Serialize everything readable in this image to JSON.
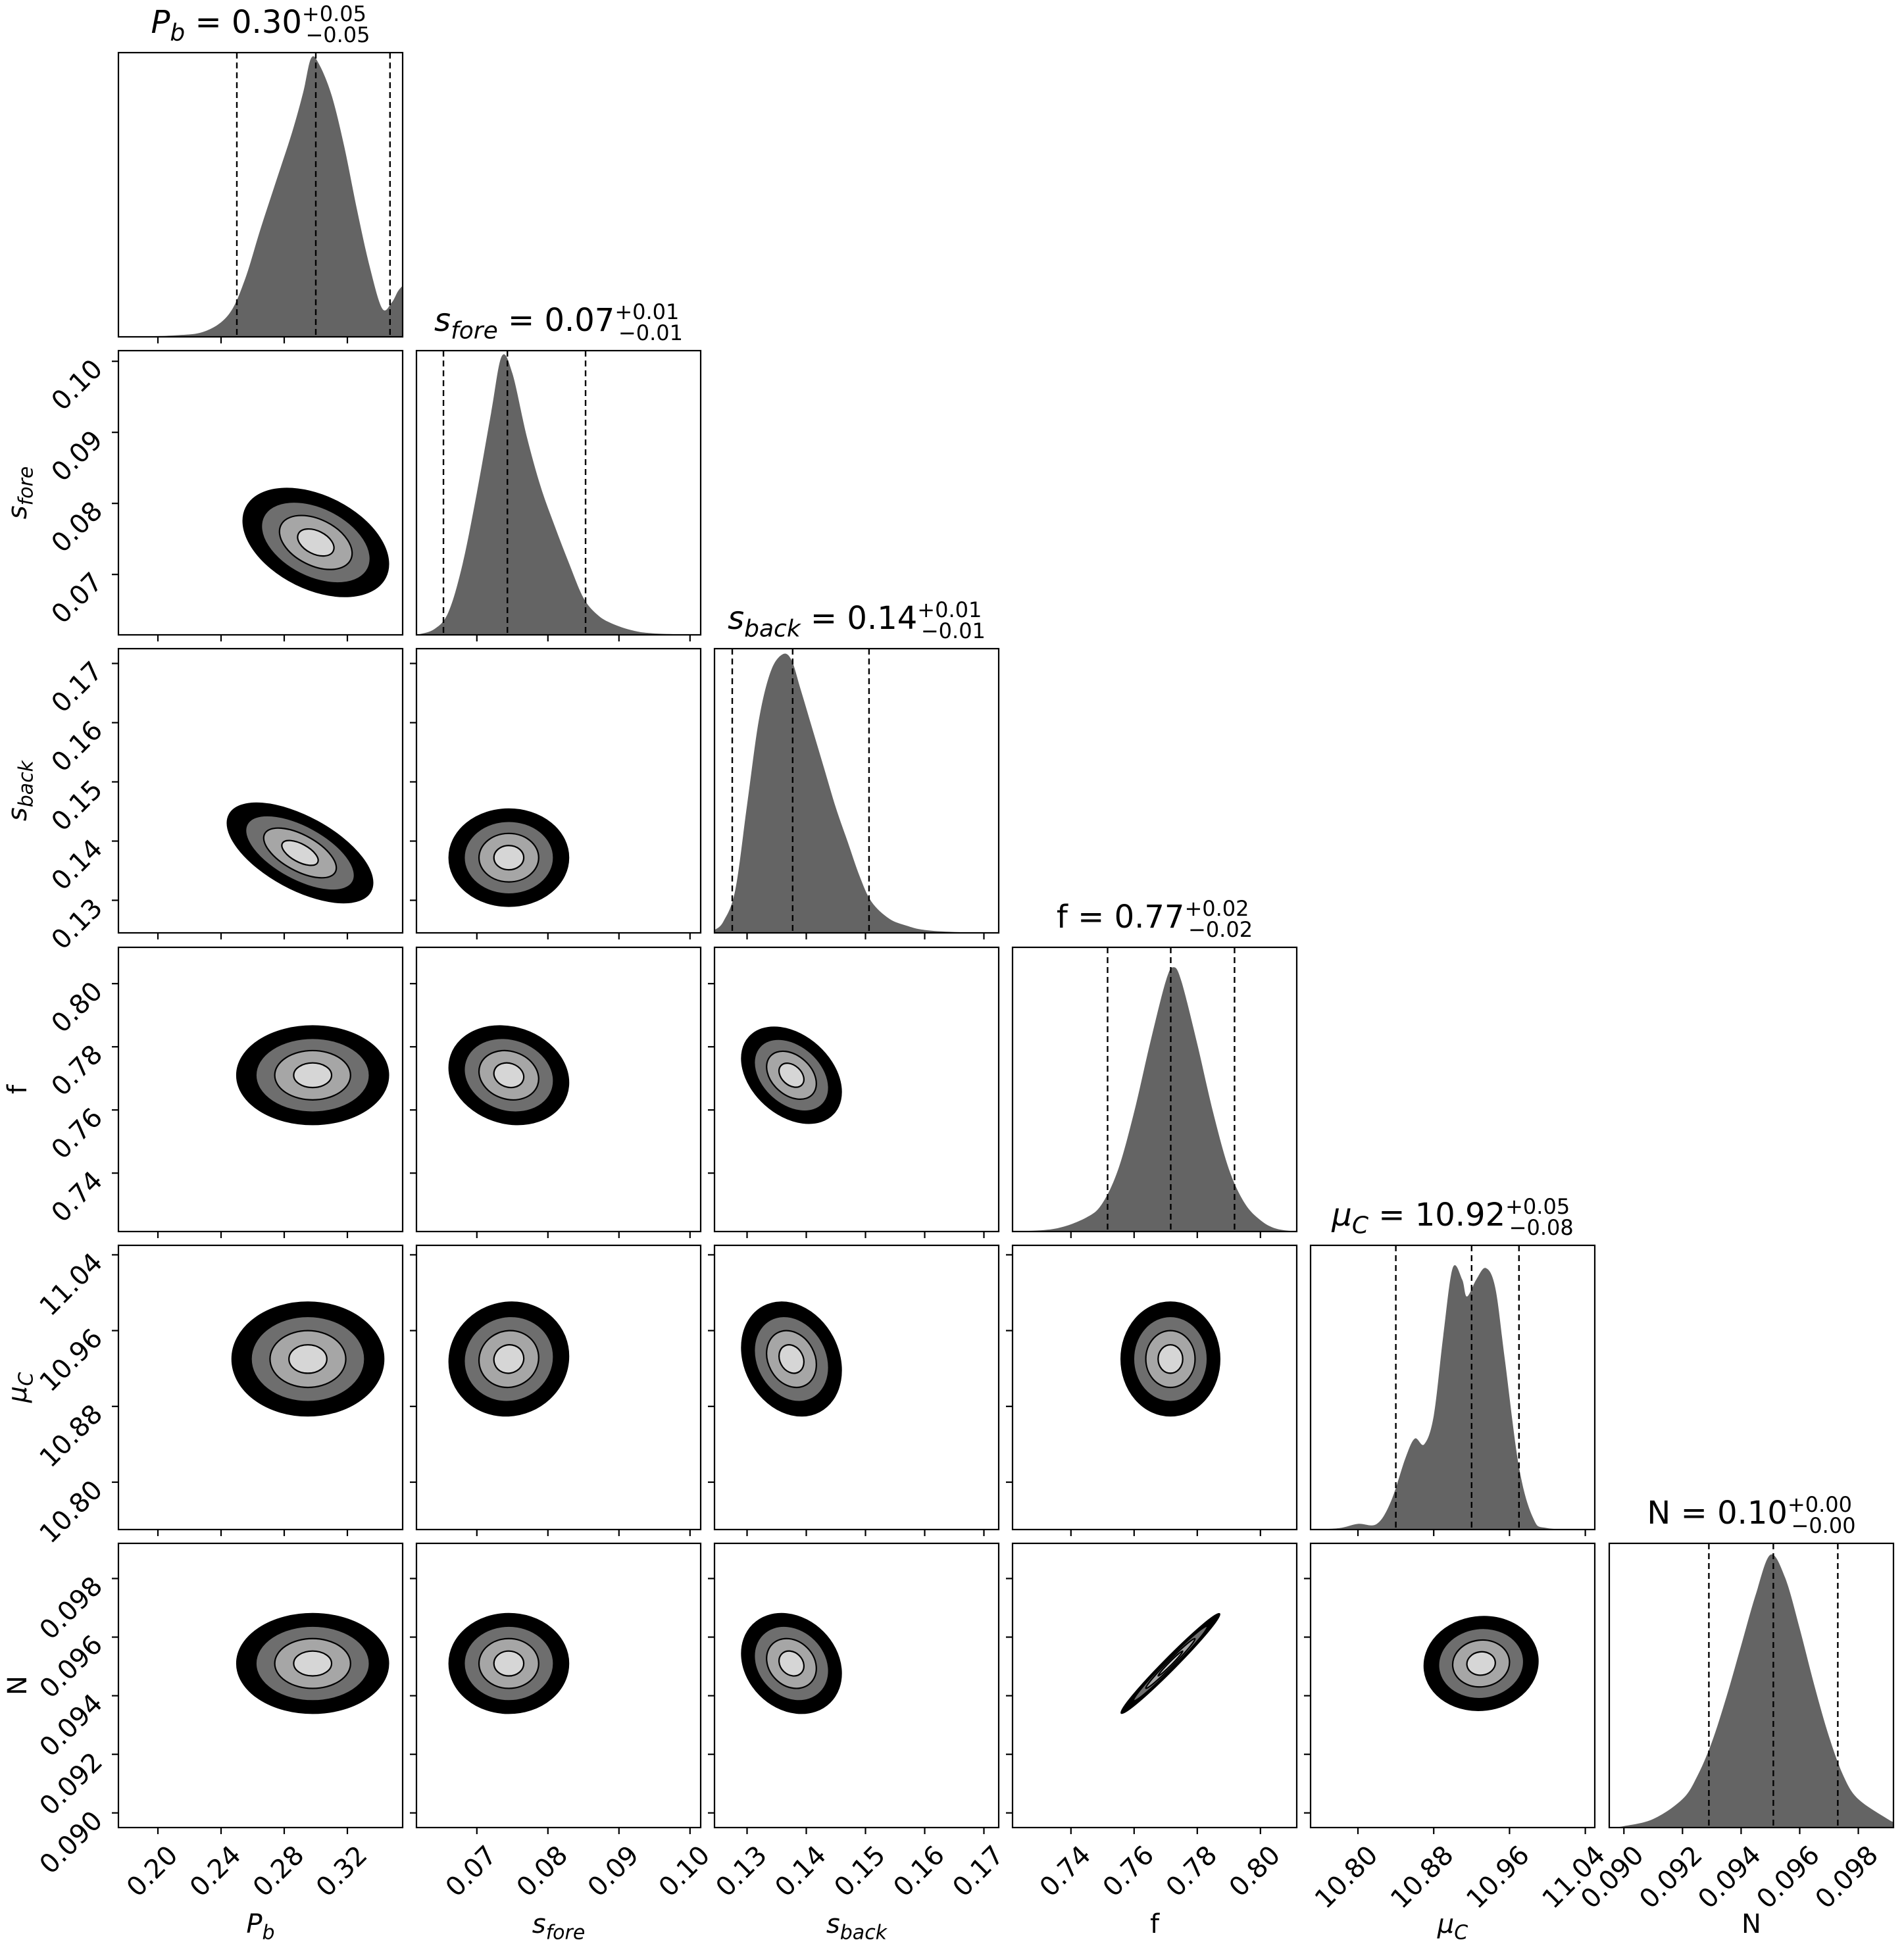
{
  "chart_data": {
    "type": "corner",
    "title": "",
    "parameters": [
      {
        "key": "pb",
        "title": {
          "base": "P",
          "sub": "b",
          "rest": " = 0.30",
          "sup": "+0.05",
          "inf": "−0.05"
        },
        "label": {
          "base": "P",
          "sub": "b"
        },
        "range": [
          0.175,
          0.355
        ],
        "ticks": [
          "0.20",
          "0.24",
          "0.28",
          "0.32"
        ],
        "median": 0.3,
        "q16": 0.25,
        "q84": 0.347
      },
      {
        "key": "sfore",
        "title": {
          "base": "s",
          "sub": "fore",
          "rest": " = 0.07",
          "sup": "+0.01",
          "inf": "−0.01"
        },
        "label": {
          "base": "s",
          "sub": "fore"
        },
        "range": [
          0.0615,
          0.1015
        ],
        "ticks": [
          "0.07",
          "0.08",
          "0.09",
          "0.10"
        ],
        "median": 0.0743,
        "q16": 0.0653,
        "q84": 0.0853
      },
      {
        "key": "sback",
        "title": {
          "base": "s",
          "sub": "back",
          "rest": " = 0.14",
          "sup": "+0.01",
          "inf": "−0.01"
        },
        "label": {
          "base": "s",
          "sub": "back"
        },
        "range": [
          0.1245,
          0.1725
        ],
        "ticks": [
          "0.13",
          "0.14",
          "0.15",
          "0.16",
          "0.17"
        ],
        "median": 0.1377,
        "q16": 0.1275,
        "q84": 0.1506
      },
      {
        "key": "f",
        "title": {
          "base": "f",
          "sub": "",
          "rest": " = 0.77",
          "sup": "+0.02",
          "inf": "−0.02"
        },
        "label": {
          "base": "f",
          "sub": ""
        },
        "range": [
          0.7215,
          0.8115
        ],
        "ticks": [
          "0.74",
          "0.76",
          "0.78",
          "0.80"
        ],
        "median": 0.7716,
        "q16": 0.7516,
        "q84": 0.7918
      },
      {
        "key": "muc",
        "title": {
          "base": "μ",
          "sub": "C",
          "rest": " = 10.92",
          "sup": "+0.05",
          "inf": "−0.08"
        },
        "label": {
          "base": "μ",
          "sub": "C"
        },
        "range": [
          10.75,
          11.05
        ],
        "ticks": [
          "10.80",
          "10.88",
          "10.96",
          "11.04"
        ],
        "median": 10.92,
        "q16": 10.84,
        "q84": 10.97
      },
      {
        "key": "n",
        "title": {
          "base": "N",
          "sub": "",
          "rest": " = 0.10",
          "sup": "+0.00",
          "inf": "−0.00"
        },
        "label": {
          "base": "N",
          "sub": ""
        },
        "range": [
          0.0895,
          0.0992
        ],
        "ticks": [
          "0.090",
          "0.092",
          "0.094",
          "0.096",
          "0.098"
        ],
        "median": 0.0951,
        "q16": 0.0929,
        "q84": 0.0973
      }
    ],
    "marginals": {
      "pb": {
        "x": [
          0.175,
          0.21,
          0.23,
          0.245,
          0.255,
          0.265,
          0.275,
          0.285,
          0.292,
          0.297,
          0.302,
          0.31,
          0.318,
          0.326,
          0.334,
          0.342,
          0.348,
          0.352,
          0.355
        ],
        "y": [
          0,
          0.005,
          0.02,
          0.08,
          0.2,
          0.38,
          0.55,
          0.72,
          0.86,
          0.98,
          0.96,
          0.85,
          0.67,
          0.45,
          0.25,
          0.1,
          0.12,
          0.16,
          0.18
        ]
      },
      "sfore": {
        "x": [
          0.0615,
          0.064,
          0.066,
          0.068,
          0.07,
          0.072,
          0.0735,
          0.075,
          0.077,
          0.079,
          0.081,
          0.083,
          0.085,
          0.087,
          0.089,
          0.092,
          0.095,
          0.1015
        ],
        "y": [
          0,
          0.02,
          0.08,
          0.25,
          0.5,
          0.78,
          0.98,
          0.92,
          0.7,
          0.52,
          0.38,
          0.25,
          0.13,
          0.07,
          0.04,
          0.015,
          0.005,
          0
        ]
      },
      "sback": {
        "x": [
          0.1245,
          0.126,
          0.128,
          0.13,
          0.132,
          0.134,
          0.136,
          0.1375,
          0.139,
          0.141,
          0.143,
          0.145,
          0.147,
          0.149,
          0.151,
          0.154,
          0.157,
          0.16,
          0.165,
          0.1725
        ],
        "y": [
          0.01,
          0.04,
          0.15,
          0.45,
          0.75,
          0.92,
          0.98,
          0.96,
          0.86,
          0.72,
          0.58,
          0.44,
          0.32,
          0.2,
          0.11,
          0.05,
          0.025,
          0.01,
          0.003,
          0
        ]
      },
      "f": {
        "x": [
          0.7215,
          0.735,
          0.745,
          0.75,
          0.755,
          0.76,
          0.765,
          0.77,
          0.7725,
          0.775,
          0.78,
          0.785,
          0.79,
          0.795,
          0.8,
          0.805,
          0.8115
        ],
        "y": [
          0,
          0.01,
          0.05,
          0.1,
          0.22,
          0.42,
          0.66,
          0.88,
          0.93,
          0.88,
          0.66,
          0.42,
          0.22,
          0.1,
          0.04,
          0.01,
          0
        ]
      },
      "muc": {
        "x": [
          10.75,
          10.78,
          10.8,
          10.82,
          10.835,
          10.85,
          10.86,
          10.87,
          10.88,
          10.89,
          10.9,
          10.91,
          10.915,
          10.925,
          10.935,
          10.945,
          10.955,
          10.97,
          10.985,
          11.0,
          11.05
        ],
        "y": [
          0,
          0.005,
          0.02,
          0.02,
          0.1,
          0.25,
          0.32,
          0.3,
          0.4,
          0.68,
          0.92,
          0.88,
          0.82,
          0.88,
          0.92,
          0.85,
          0.6,
          0.22,
          0.04,
          0.005,
          0
        ]
      },
      "n": {
        "x": [
          0.0895,
          0.09,
          0.091,
          0.092,
          0.0925,
          0.093,
          0.0935,
          0.094,
          0.0945,
          0.095,
          0.0955,
          0.096,
          0.0965,
          0.097,
          0.0975,
          0.098,
          0.099,
          0.0992
        ],
        "y": [
          0,
          0.005,
          0.03,
          0.1,
          0.18,
          0.3,
          0.46,
          0.64,
          0.82,
          0.96,
          0.88,
          0.7,
          0.5,
          0.32,
          0.18,
          0.1,
          0.03,
          0.02
        ]
      }
    },
    "contours": [
      {
        "x": "pb",
        "y": "sfore",
        "center": [
          0.3,
          0.0745
        ],
        "sigma": [
          0.023,
          0.0038
        ],
        "rho": -0.4
      },
      {
        "x": "pb",
        "y": "sback",
        "center": [
          0.29,
          0.138
        ],
        "sigma": [
          0.023,
          0.0042
        ],
        "rho": -0.6
      },
      {
        "x": "sfore",
        "y": "sback",
        "center": [
          0.0745,
          0.1372
        ],
        "sigma": [
          0.0042,
          0.0041
        ],
        "rho": 0.0
      },
      {
        "x": "pb",
        "y": "f",
        "center": [
          0.298,
          0.771
        ],
        "sigma": [
          0.024,
          0.0078
        ],
        "rho": 0.0
      },
      {
        "x": "sfore",
        "y": "f",
        "center": [
          0.0745,
          0.771
        ],
        "sigma": [
          0.0042,
          0.0078
        ],
        "rho": -0.15
      },
      {
        "x": "sback",
        "y": "f",
        "center": [
          0.1375,
          0.771
        ],
        "sigma": [
          0.0042,
          0.0076
        ],
        "rho": -0.35
      },
      {
        "x": "pb",
        "y": "muc",
        "center": [
          0.295,
          10.93
        ],
        "sigma": [
          0.024,
          0.03
        ],
        "rho": 0.0
      },
      {
        "x": "sfore",
        "y": "muc",
        "center": [
          0.0745,
          10.93
        ],
        "sigma": [
          0.0042,
          0.03
        ],
        "rho": 0.05
      },
      {
        "x": "sback",
        "y": "muc",
        "center": [
          0.1375,
          10.93
        ],
        "sigma": [
          0.0042,
          0.03
        ],
        "rho": -0.2
      },
      {
        "x": "f",
        "y": "muc",
        "center": [
          0.7715,
          10.93
        ],
        "sigma": [
          0.0078,
          0.03
        ],
        "rho": 0.0
      },
      {
        "x": "pb",
        "y": "n",
        "center": [
          0.298,
          0.0951
        ],
        "sigma": [
          0.024,
          0.00085
        ],
        "rho": 0.0
      },
      {
        "x": "sfore",
        "y": "n",
        "center": [
          0.0745,
          0.0951
        ],
        "sigma": [
          0.0042,
          0.00085
        ],
        "rho": 0.0
      },
      {
        "x": "sback",
        "y": "n",
        "center": [
          0.1375,
          0.0951
        ],
        "sigma": [
          0.0042,
          0.00085
        ],
        "rho": -0.2
      },
      {
        "x": "f",
        "y": "n",
        "center": [
          0.7715,
          0.0951
        ],
        "sigma": [
          0.0078,
          0.00085
        ],
        "rho": 0.985
      },
      {
        "x": "muc",
        "y": "n",
        "center": [
          10.93,
          0.0951
        ],
        "sigma": [
          0.03,
          0.0008
        ],
        "rho": 0.05
      }
    ],
    "contour_levels": [
      0.5,
      1.0,
      1.5,
      2.0
    ],
    "contour_fills": [
      "#d6d6d6",
      "#a6a6a6",
      "#6e6e6e",
      "#000000"
    ],
    "histogram_fill": "#646464",
    "grid": false,
    "legend": "none"
  }
}
